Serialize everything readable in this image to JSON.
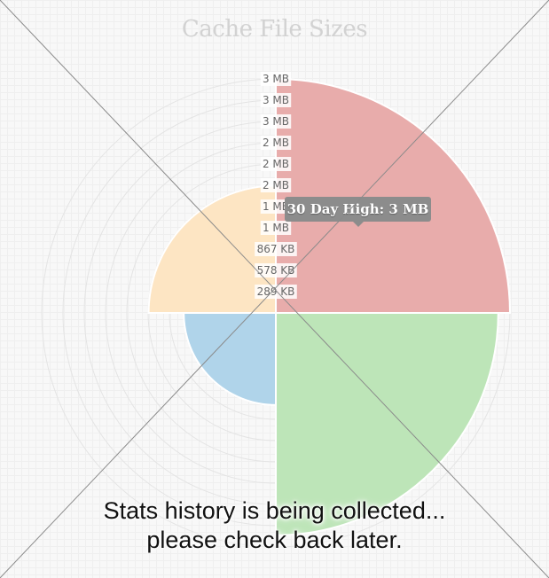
{
  "chart_data": {
    "type": "polar-area",
    "title": "Cache File Sizes",
    "unit": "bytes",
    "r_ticks": [
      "289 KB",
      "578 KB",
      "867 KB",
      "1 MB",
      "1 MB",
      "2 MB",
      "2 MB",
      "2 MB",
      "3 MB",
      "3 MB"
    ],
    "r_max_label": "3 MB",
    "r_max": 3000000,
    "segments": [
      {
        "value": 3000000,
        "color": "#e8acab"
      },
      {
        "value": 2850000,
        "color": "#bde5b8"
      },
      {
        "value": 1180000,
        "color": "#b0d4ea"
      },
      {
        "value": 1630000,
        "color": "#fde5c3"
      }
    ],
    "tooltip": "30 Day High: 3 MB",
    "grid": true
  },
  "overlay": {
    "message_line1": "Stats history is being collected...",
    "message_line2": "please check back later."
  }
}
